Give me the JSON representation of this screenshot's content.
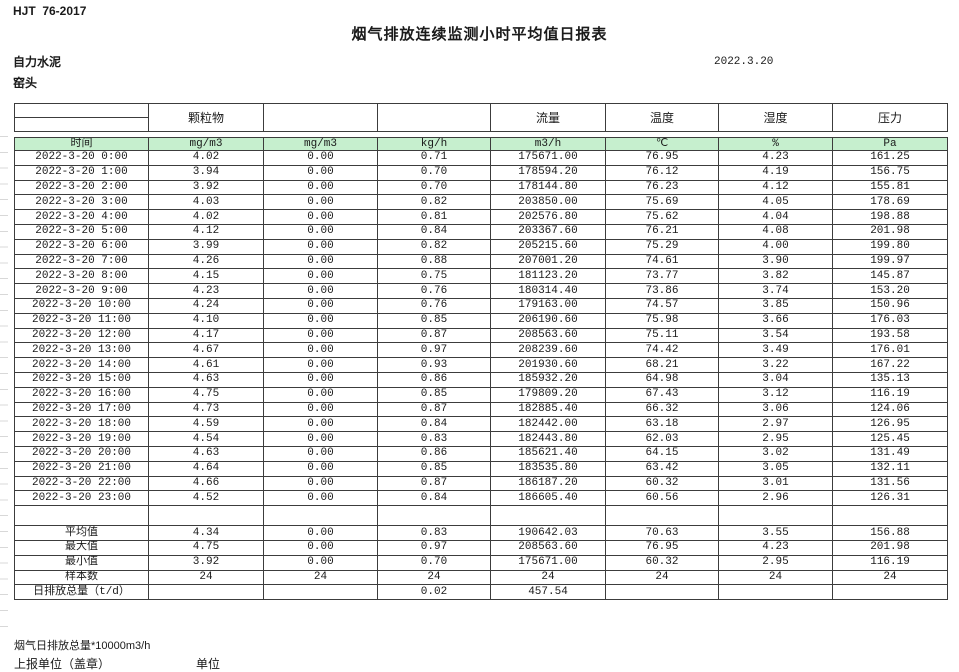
{
  "doc": {
    "standard_code": "HJT  76-2017",
    "title": "烟气排放连续监测小时平均值日报表",
    "company": "自力水泥",
    "station": "窑头",
    "date": "2022.3.20"
  },
  "colors": {
    "unit_row_fill": "#c6efce",
    "border": "#3c3c3c"
  },
  "table": {
    "group_headers": [
      "",
      "颗粒物",
      "",
      "",
      "流量",
      "温度",
      "湿度",
      "压力"
    ],
    "unit_row": [
      "时间",
      "mg/m3",
      "mg/m3",
      "kg/h",
      "m3/h",
      "℃",
      "%",
      "Pa"
    ],
    "rows": [
      {
        "time": "2022-3-20 0:00",
        "values": [
          "4.02",
          "0.00",
          "0.71",
          "175671.00",
          "76.95",
          "4.23",
          "161.25"
        ]
      },
      {
        "time": "2022-3-20 1:00",
        "values": [
          "3.94",
          "0.00",
          "0.70",
          "178594.20",
          "76.12",
          "4.19",
          "156.75"
        ]
      },
      {
        "time": "2022-3-20 2:00",
        "values": [
          "3.92",
          "0.00",
          "0.70",
          "178144.80",
          "76.23",
          "4.12",
          "155.81"
        ]
      },
      {
        "time": "2022-3-20 3:00",
        "values": [
          "4.03",
          "0.00",
          "0.82",
          "203850.00",
          "75.69",
          "4.05",
          "178.69"
        ]
      },
      {
        "time": "2022-3-20 4:00",
        "values": [
          "4.02",
          "0.00",
          "0.81",
          "202576.80",
          "75.62",
          "4.04",
          "198.88"
        ]
      },
      {
        "time": "2022-3-20 5:00",
        "values": [
          "4.12",
          "0.00",
          "0.84",
          "203367.60",
          "76.21",
          "4.08",
          "201.98"
        ]
      },
      {
        "time": "2022-3-20 6:00",
        "values": [
          "3.99",
          "0.00",
          "0.82",
          "205215.60",
          "75.29",
          "4.00",
          "199.80"
        ]
      },
      {
        "time": "2022-3-20 7:00",
        "values": [
          "4.26",
          "0.00",
          "0.88",
          "207001.20",
          "74.61",
          "3.90",
          "199.97"
        ]
      },
      {
        "time": "2022-3-20 8:00",
        "values": [
          "4.15",
          "0.00",
          "0.75",
          "181123.20",
          "73.77",
          "3.82",
          "145.87"
        ]
      },
      {
        "time": "2022-3-20 9:00",
        "values": [
          "4.23",
          "0.00",
          "0.76",
          "180314.40",
          "73.86",
          "3.74",
          "153.20"
        ]
      },
      {
        "time": "2022-3-20 10:00",
        "values": [
          "4.24",
          "0.00",
          "0.76",
          "179163.00",
          "74.57",
          "3.85",
          "150.96"
        ]
      },
      {
        "time": "2022-3-20 11:00",
        "values": [
          "4.10",
          "0.00",
          "0.85",
          "206190.60",
          "75.98",
          "3.66",
          "176.03"
        ]
      },
      {
        "time": "2022-3-20 12:00",
        "values": [
          "4.17",
          "0.00",
          "0.87",
          "208563.60",
          "75.11",
          "3.54",
          "193.58"
        ]
      },
      {
        "time": "2022-3-20 13:00",
        "values": [
          "4.67",
          "0.00",
          "0.97",
          "208239.60",
          "74.42",
          "3.49",
          "176.01"
        ]
      },
      {
        "time": "2022-3-20 14:00",
        "values": [
          "4.61",
          "0.00",
          "0.93",
          "201930.60",
          "68.21",
          "3.22",
          "167.22"
        ]
      },
      {
        "time": "2022-3-20 15:00",
        "values": [
          "4.63",
          "0.00",
          "0.86",
          "185932.20",
          "64.98",
          "3.04",
          "135.13"
        ]
      },
      {
        "time": "2022-3-20 16:00",
        "values": [
          "4.75",
          "0.00",
          "0.85",
          "179809.20",
          "67.43",
          "3.12",
          "116.19"
        ]
      },
      {
        "time": "2022-3-20 17:00",
        "values": [
          "4.73",
          "0.00",
          "0.87",
          "182885.40",
          "66.32",
          "3.06",
          "124.06"
        ]
      },
      {
        "time": "2022-3-20 18:00",
        "values": [
          "4.59",
          "0.00",
          "0.84",
          "182442.00",
          "63.18",
          "2.97",
          "126.95"
        ]
      },
      {
        "time": "2022-3-20 19:00",
        "values": [
          "4.54",
          "0.00",
          "0.83",
          "182443.80",
          "62.03",
          "2.95",
          "125.45"
        ]
      },
      {
        "time": "2022-3-20 20:00",
        "values": [
          "4.63",
          "0.00",
          "0.86",
          "185621.40",
          "64.15",
          "3.02",
          "131.49"
        ]
      },
      {
        "time": "2022-3-20 21:00",
        "values": [
          "4.64",
          "0.00",
          "0.85",
          "183535.80",
          "63.42",
          "3.05",
          "132.11"
        ]
      },
      {
        "time": "2022-3-20 22:00",
        "values": [
          "4.66",
          "0.00",
          "0.87",
          "186187.20",
          "60.32",
          "3.01",
          "131.56"
        ]
      },
      {
        "time": "2022-3-20 23:00",
        "values": [
          "4.52",
          "0.00",
          "0.84",
          "186605.40",
          "60.56",
          "2.96",
          "126.31"
        ]
      }
    ],
    "summary": [
      {
        "label": "平均值",
        "values": [
          "4.34",
          "0.00",
          "0.83",
          "190642.03",
          "70.63",
          "3.55",
          "156.88"
        ]
      },
      {
        "label": "最大值",
        "values": [
          "4.75",
          "0.00",
          "0.97",
          "208563.60",
          "76.95",
          "4.23",
          "201.98"
        ]
      },
      {
        "label": "最小值",
        "values": [
          "3.92",
          "0.00",
          "0.70",
          "175671.00",
          "60.32",
          "2.95",
          "116.19"
        ]
      },
      {
        "label": "样本数",
        "values": [
          "24",
          "24",
          "24",
          "24",
          "24",
          "24",
          "24"
        ]
      },
      {
        "label": "日排放总量（t/d）",
        "values": [
          "",
          "",
          "0.02",
          "457.54",
          "",
          "",
          ""
        ]
      }
    ]
  },
  "footer": {
    "note": "烟气日排放总量*10000m3/h",
    "stamp_label": "上报单位（盖章）",
    "unit_label": "单位"
  }
}
